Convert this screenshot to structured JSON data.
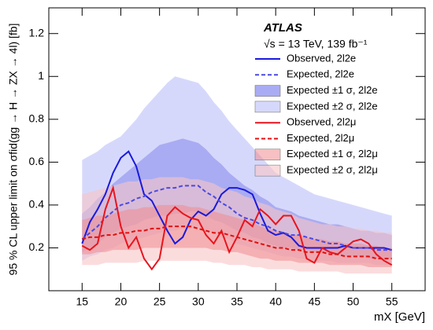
{
  "chart_data": {
    "type": "limit-bands",
    "annotations": [
      "ATLAS",
      "√s = 13 TeV, 139 fb⁻¹"
    ],
    "xlabel": "mX [GeV]",
    "ylabel": "95 % CL upper limit on σfid(gg → H → ZX → 4l) [fb]",
    "xlim": [
      10.7,
      59.3
    ],
    "ylim": [
      0,
      1.32
    ],
    "xticks": [
      15,
      20,
      25,
      30,
      35,
      40,
      45,
      50,
      55
    ],
    "yticks": [
      0.2,
      0.4,
      0.6,
      0.8,
      1,
      1.2
    ],
    "x": [
      15,
      16,
      17,
      18,
      19,
      20,
      21,
      22,
      23,
      24,
      25,
      26,
      27,
      28,
      29,
      30,
      31,
      32,
      33,
      34,
      35,
      36,
      37,
      38,
      39,
      40,
      41,
      42,
      43,
      44,
      45,
      46,
      47,
      48,
      49,
      50,
      51,
      52,
      53,
      54,
      55
    ],
    "series": [
      {
        "name": "Observed, 2l2e",
        "kind": "line",
        "style": "solid",
        "color": "#1a1adc",
        "values": [
          0.22,
          0.32,
          0.38,
          0.45,
          0.55,
          0.62,
          0.65,
          0.58,
          0.45,
          0.42,
          0.35,
          0.28,
          0.22,
          0.25,
          0.33,
          0.37,
          0.35,
          0.38,
          0.45,
          0.48,
          0.48,
          0.47,
          0.45,
          0.36,
          0.28,
          0.26,
          0.27,
          0.25,
          0.21,
          0.2,
          0.2,
          0.2,
          0.2,
          0.2,
          0.21,
          0.2,
          0.2,
          0.2,
          0.2,
          0.2,
          0.19
        ]
      },
      {
        "name": "Expected, 2l2e",
        "kind": "line",
        "style": "dashed",
        "color": "#4a4ae0",
        "values": [
          0.24,
          0.27,
          0.3,
          0.34,
          0.37,
          0.4,
          0.41,
          0.43,
          0.44,
          0.46,
          0.47,
          0.48,
          0.48,
          0.49,
          0.49,
          0.49,
          0.46,
          0.44,
          0.41,
          0.39,
          0.36,
          0.34,
          0.33,
          0.31,
          0.3,
          0.28,
          0.27,
          0.26,
          0.26,
          0.25,
          0.24,
          0.23,
          0.22,
          0.22,
          0.21,
          0.2,
          0.2,
          0.2,
          0.19,
          0.19,
          0.19
        ]
      },
      {
        "name": "Expected ±1 σ, 2l2e",
        "kind": "band",
        "color": "#a9acf2",
        "opacity": 1,
        "low": [
          0.18,
          0.2,
          0.22,
          0.25,
          0.27,
          0.29,
          0.3,
          0.31,
          0.33,
          0.34,
          0.35,
          0.35,
          0.36,
          0.36,
          0.37,
          0.37,
          0.35,
          0.33,
          0.32,
          0.3,
          0.28,
          0.27,
          0.25,
          0.24,
          0.22,
          0.21,
          0.2,
          0.2,
          0.19,
          0.19,
          0.18,
          0.18,
          0.17,
          0.17,
          0.16,
          0.16,
          0.16,
          0.15,
          0.15,
          0.15,
          0.15
        ],
        "high": [
          0.36,
          0.39,
          0.43,
          0.46,
          0.5,
          0.53,
          0.56,
          0.59,
          0.62,
          0.65,
          0.68,
          0.69,
          0.7,
          0.71,
          0.7,
          0.69,
          0.66,
          0.62,
          0.59,
          0.55,
          0.52,
          0.49,
          0.47,
          0.44,
          0.42,
          0.39,
          0.38,
          0.37,
          0.35,
          0.34,
          0.33,
          0.32,
          0.31,
          0.31,
          0.3,
          0.29,
          0.28,
          0.28,
          0.27,
          0.27,
          0.26
        ]
      },
      {
        "name": "Expected ±2 σ, 2l2e",
        "kind": "band",
        "color": "#d6d8fb",
        "opacity": 1,
        "low": [
          0.14,
          0.16,
          0.17,
          0.19,
          0.2,
          0.22,
          0.23,
          0.24,
          0.25,
          0.26,
          0.27,
          0.28,
          0.28,
          0.29,
          0.29,
          0.3,
          0.28,
          0.27,
          0.25,
          0.24,
          0.22,
          0.21,
          0.2,
          0.19,
          0.18,
          0.17,
          0.16,
          0.16,
          0.15,
          0.15,
          0.14,
          0.14,
          0.14,
          0.13,
          0.13,
          0.13,
          0.13,
          0.13,
          0.12,
          0.12,
          0.12
        ],
        "high": [
          0.61,
          0.63,
          0.65,
          0.68,
          0.7,
          0.72,
          0.76,
          0.8,
          0.85,
          0.89,
          0.93,
          0.97,
          1.0,
          0.99,
          0.98,
          0.97,
          0.93,
          0.88,
          0.84,
          0.79,
          0.75,
          0.71,
          0.67,
          0.63,
          0.59,
          0.55,
          0.53,
          0.51,
          0.49,
          0.47,
          0.45,
          0.44,
          0.43,
          0.42,
          0.41,
          0.4,
          0.39,
          0.38,
          0.37,
          0.36,
          0.35
        ]
      },
      {
        "name": "Observed, 2l2μ",
        "kind": "line",
        "style": "solid",
        "color": "#e8141e",
        "values": [
          0.21,
          0.19,
          0.22,
          0.38,
          0.48,
          0.3,
          0.2,
          0.25,
          0.15,
          0.1,
          0.15,
          0.35,
          0.39,
          0.36,
          0.34,
          0.33,
          0.26,
          0.22,
          0.28,
          0.18,
          0.25,
          0.33,
          0.3,
          0.38,
          0.35,
          0.31,
          0.35,
          0.35,
          0.28,
          0.15,
          0.13,
          0.2,
          0.18,
          0.17,
          0.2,
          0.23,
          0.24,
          0.22,
          0.17,
          0.14,
          0.12
        ]
      },
      {
        "name": "Expected, 2l2μ",
        "kind": "line",
        "style": "dashed",
        "color": "#e01010",
        "values": [
          0.24,
          0.25,
          0.25,
          0.26,
          0.26,
          0.27,
          0.27,
          0.28,
          0.28,
          0.29,
          0.29,
          0.3,
          0.3,
          0.3,
          0.3,
          0.29,
          0.28,
          0.27,
          0.27,
          0.26,
          0.25,
          0.24,
          0.23,
          0.22,
          0.21,
          0.2,
          0.2,
          0.19,
          0.19,
          0.18,
          0.18,
          0.18,
          0.17,
          0.17,
          0.16,
          0.16,
          0.16,
          0.16,
          0.15,
          0.15,
          0.15
        ]
      },
      {
        "name": "Expected ±1 σ, 2l2μ",
        "kind": "band",
        "color": "#f08c90",
        "opacity": 0.55,
        "low": [
          0.17,
          0.17,
          0.18,
          0.18,
          0.19,
          0.19,
          0.19,
          0.19,
          0.2,
          0.2,
          0.2,
          0.2,
          0.2,
          0.2,
          0.2,
          0.2,
          0.2,
          0.19,
          0.19,
          0.18,
          0.18,
          0.17,
          0.16,
          0.15,
          0.15,
          0.14,
          0.14,
          0.14,
          0.13,
          0.13,
          0.13,
          0.13,
          0.12,
          0.12,
          0.12,
          0.12,
          0.12,
          0.11,
          0.11,
          0.11,
          0.11
        ],
        "high": [
          0.33,
          0.34,
          0.35,
          0.35,
          0.36,
          0.37,
          0.38,
          0.38,
          0.39,
          0.39,
          0.4,
          0.4,
          0.4,
          0.4,
          0.39,
          0.39,
          0.38,
          0.37,
          0.36,
          0.35,
          0.34,
          0.33,
          0.32,
          0.3,
          0.29,
          0.28,
          0.27,
          0.26,
          0.26,
          0.25,
          0.24,
          0.24,
          0.23,
          0.23,
          0.22,
          0.22,
          0.22,
          0.21,
          0.21,
          0.2,
          0.2
        ]
      },
      {
        "name": "Expected ±2 σ, 2l2μ",
        "kind": "band",
        "color": "#f8c4c6",
        "opacity": 0.6,
        "low": [
          0.12,
          0.12,
          0.12,
          0.13,
          0.13,
          0.13,
          0.13,
          0.13,
          0.14,
          0.14,
          0.14,
          0.14,
          0.14,
          0.14,
          0.14,
          0.14,
          0.14,
          0.13,
          0.13,
          0.12,
          0.12,
          0.12,
          0.11,
          0.11,
          0.1,
          0.1,
          0.1,
          0.1,
          0.09,
          0.09,
          0.09,
          0.09,
          0.09,
          0.09,
          0.08,
          0.08,
          0.08,
          0.08,
          0.08,
          0.08,
          0.08
        ],
        "high": [
          0.45,
          0.46,
          0.47,
          0.48,
          0.49,
          0.5,
          0.51,
          0.51,
          0.52,
          0.52,
          0.53,
          0.53,
          0.53,
          0.53,
          0.52,
          0.52,
          0.51,
          0.5,
          0.48,
          0.47,
          0.46,
          0.44,
          0.43,
          0.41,
          0.4,
          0.38,
          0.37,
          0.36,
          0.34,
          0.33,
          0.32,
          0.31,
          0.31,
          0.3,
          0.3,
          0.29,
          0.29,
          0.28,
          0.28,
          0.27,
          0.27
        ]
      }
    ]
  }
}
